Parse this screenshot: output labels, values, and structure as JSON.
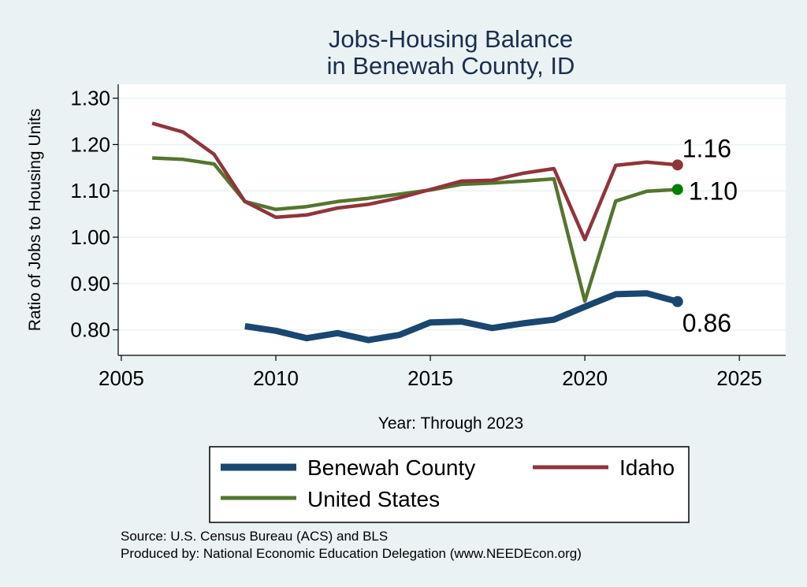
{
  "chart_data": {
    "type": "line",
    "title": "Jobs-Housing Balance",
    "subtitle": "in Benewah County, ID",
    "xlabel": "Year: Through 2023",
    "ylabel": "Ratio of Jobs to Housing Units",
    "xlim": [
      2004.9,
      2026.5
    ],
    "ylim": [
      0.745,
      1.33
    ],
    "x_ticks": [
      2005,
      2010,
      2015,
      2020,
      2025
    ],
    "y_ticks": [
      0.8,
      0.9,
      1.0,
      1.1,
      1.2,
      1.3
    ],
    "y_tick_labels": [
      "0.80",
      "0.90",
      "1.00",
      "1.10",
      "1.20",
      "1.30"
    ],
    "grid": true,
    "legend_position": "bottom",
    "series": [
      {
        "name": "Benewah County",
        "color": "#1a476f",
        "line_width": "thick",
        "x": [
          2009,
          2010,
          2011,
          2012,
          2013,
          2014,
          2015,
          2016,
          2017,
          2018,
          2019,
          2020,
          2021,
          2022,
          2023
        ],
        "values": [
          0.808,
          0.798,
          0.782,
          0.793,
          0.778,
          0.789,
          0.816,
          0.818,
          0.804,
          0.814,
          0.822,
          0.85,
          0.877,
          0.879,
          0.861
        ],
        "end_label": "0.86"
      },
      {
        "name": "Idaho",
        "color": "#90353b",
        "line_width": "medium",
        "x": [
          2006,
          2007,
          2008,
          2009,
          2010,
          2011,
          2012,
          2013,
          2014,
          2015,
          2016,
          2017,
          2018,
          2019,
          2020,
          2021,
          2022,
          2023
        ],
        "values": [
          1.246,
          1.227,
          1.179,
          1.077,
          1.043,
          1.048,
          1.063,
          1.071,
          1.085,
          1.103,
          1.121,
          1.123,
          1.138,
          1.148,
          0.995,
          1.155,
          1.162,
          1.156
        ],
        "end_label": "1.16"
      },
      {
        "name": "United States",
        "color": "#55752f",
        "line_width": "medium",
        "x": [
          2006,
          2007,
          2008,
          2009,
          2010,
          2011,
          2012,
          2013,
          2014,
          2015,
          2016,
          2017,
          2018,
          2019,
          2020,
          2021,
          2022,
          2023
        ],
        "values": [
          1.171,
          1.168,
          1.158,
          1.077,
          1.06,
          1.066,
          1.077,
          1.084,
          1.093,
          1.102,
          1.114,
          1.117,
          1.121,
          1.126,
          0.862,
          1.078,
          1.099,
          1.103
        ],
        "end_label": "1.10",
        "end_marker_color": "#008000"
      }
    ]
  },
  "legend": {
    "items": [
      "Benewah County",
      "Idaho",
      "United States"
    ]
  },
  "source": {
    "line1": "Source: U.S. Census Bureau (ACS) and BLS",
    "line2": "Produced by: National Economic Education Delegation (www.NEEDEcon.org)"
  }
}
